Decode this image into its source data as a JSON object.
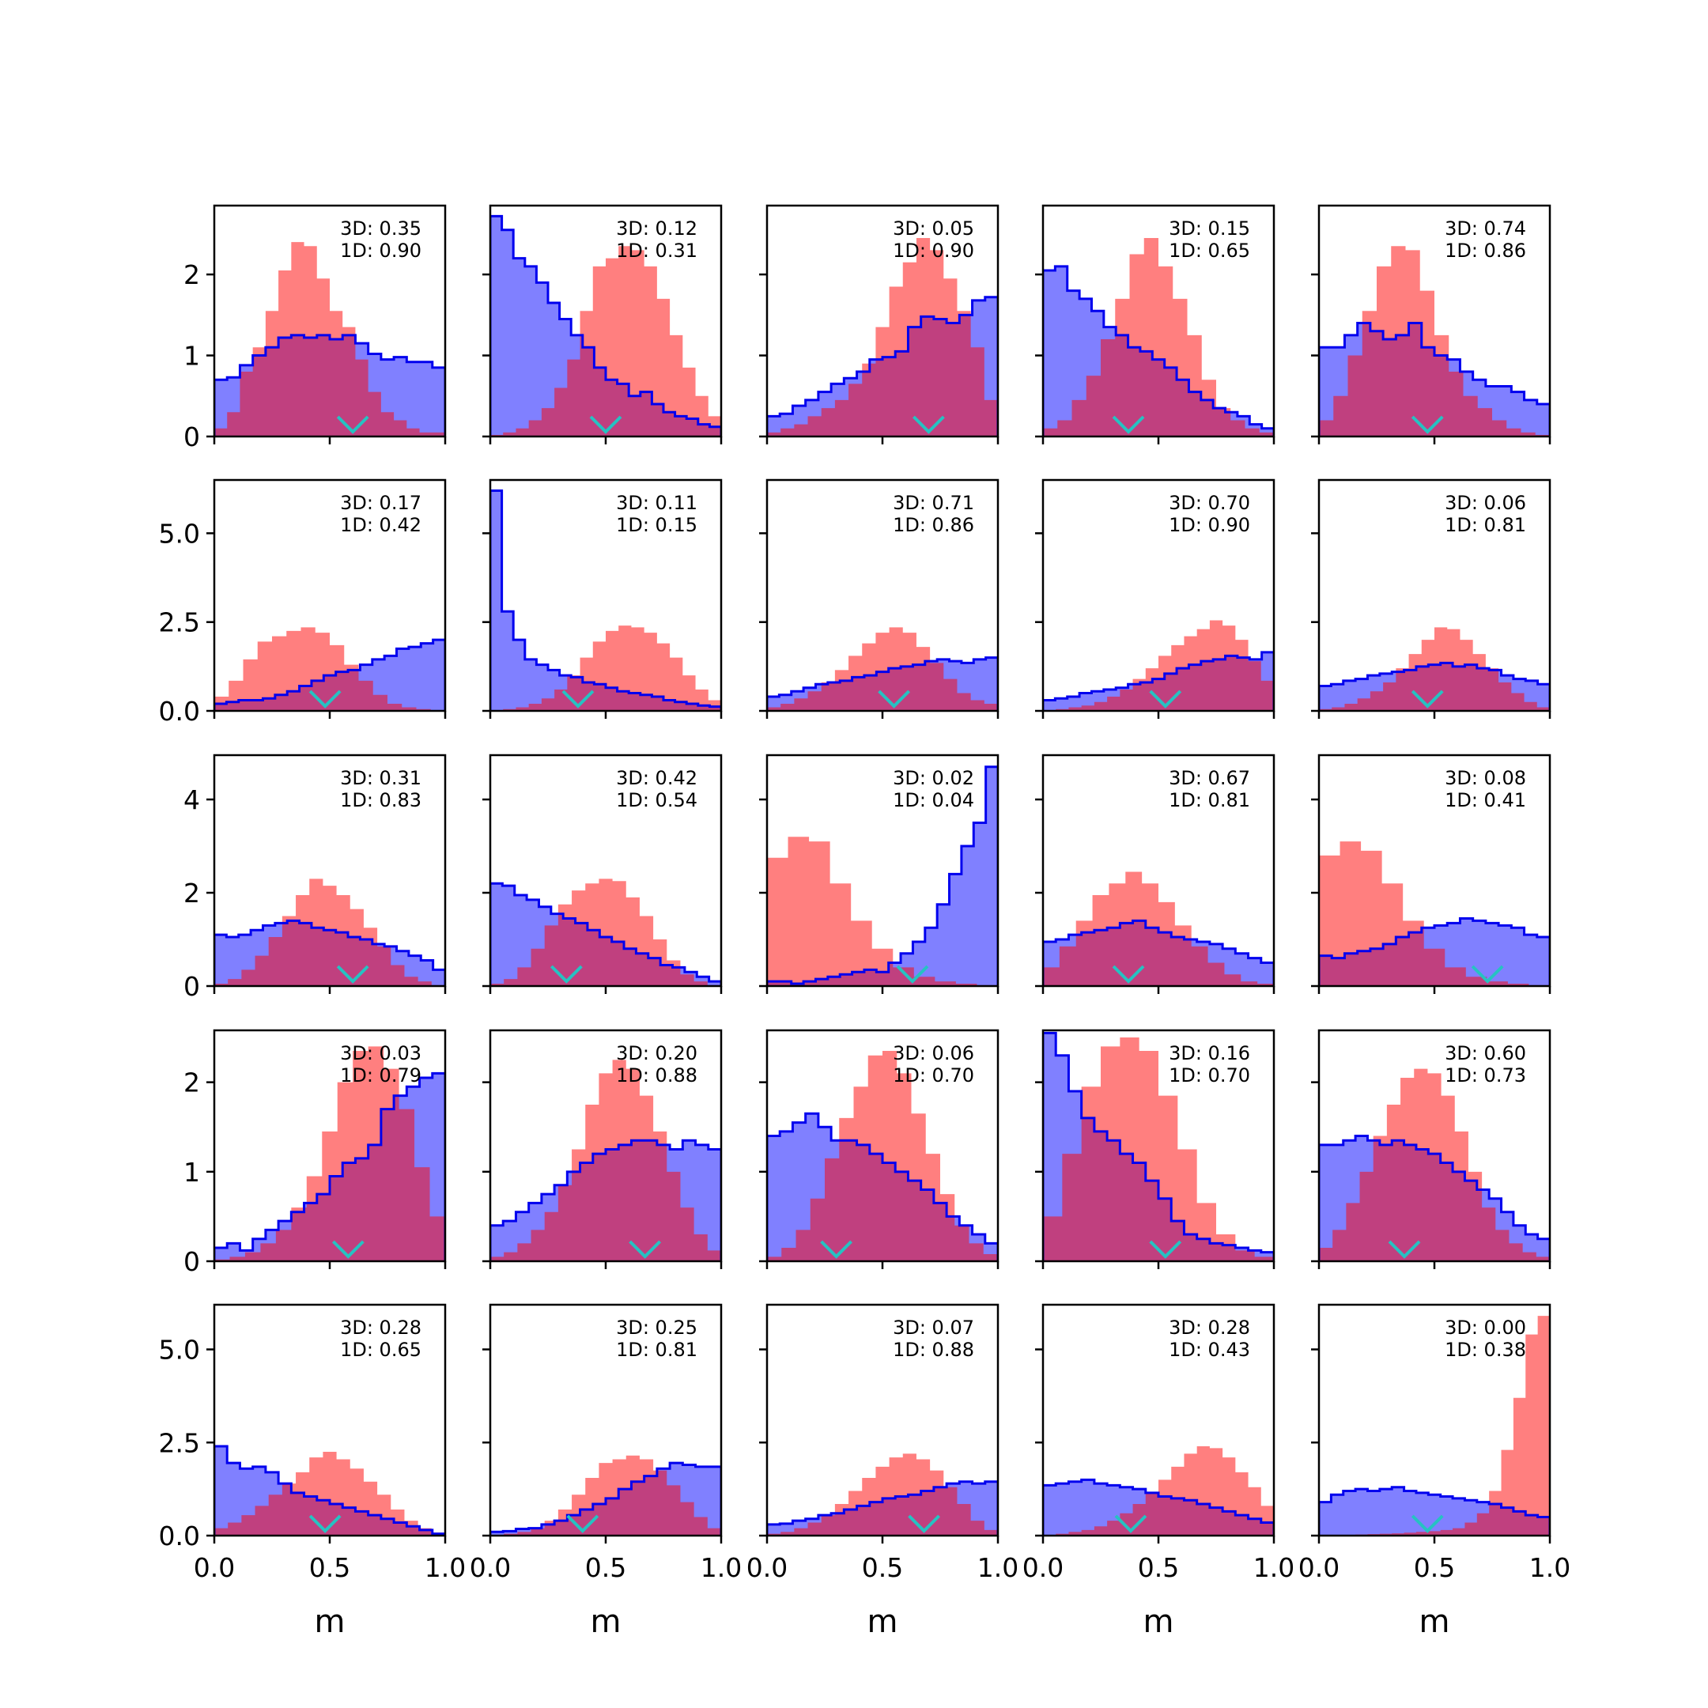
{
  "chart_data": {
    "type": "histogram-grid",
    "rows": 5,
    "cols": 5,
    "xlabel": "m",
    "xlim": [
      0,
      1
    ],
    "xticks": [
      "0.0",
      "0.5",
      "1.0"
    ],
    "colors": {
      "blue_fill": "#8080ff",
      "blue_edge": "#0000ee",
      "red_fill": "#ff7f7f",
      "overlap": "#c0407f",
      "marker": "#26c2c2"
    },
    "row_axes": [
      {
        "ylim": [
          0,
          2.85
        ],
        "yticks": [
          0,
          1,
          2
        ],
        "ytick_labels": [
          "0",
          "1",
          "2"
        ]
      },
      {
        "ylim": [
          0,
          6.5
        ],
        "yticks": [
          0,
          2.5,
          5.0
        ],
        "ytick_labels": [
          "0.0",
          "2.5",
          "5.0"
        ]
      },
      {
        "ylim": [
          0,
          4.95
        ],
        "yticks": [
          0,
          2,
          4
        ],
        "ytick_labels": [
          "0",
          "2",
          "4"
        ]
      },
      {
        "ylim": [
          0,
          2.58
        ],
        "yticks": [
          0,
          1,
          2
        ],
        "ytick_labels": [
          "0",
          "1",
          "2"
        ]
      },
      {
        "ylim": [
          0,
          6.2
        ],
        "yticks": [
          0,
          2.5,
          5.0
        ],
        "ytick_labels": [
          "0.0",
          "2.5",
          "5.0"
        ]
      }
    ],
    "panels": [
      {
        "label3d": "3D: 0.35",
        "label1d": "1D: 0.90",
        "marker": 0.6,
        "blue": [
          0.7,
          0.73,
          0.88,
          1.0,
          1.1,
          1.22,
          1.25,
          1.22,
          1.25,
          1.2,
          1.25,
          1.15,
          1.02,
          0.95,
          0.98,
          0.92,
          0.92,
          0.85
        ],
        "red": [
          0.1,
          0.3,
          0.8,
          1.1,
          1.55,
          2.05,
          2.4,
          2.35,
          1.95,
          1.55,
          1.35,
          0.95,
          0.55,
          0.3,
          0.2,
          0.1,
          0.05,
          0.05
        ]
      },
      {
        "label3d": "3D: 0.12",
        "label1d": "1D: 0.31",
        "marker": 0.5,
        "blue": [
          2.72,
          2.55,
          2.2,
          2.1,
          1.9,
          1.65,
          1.45,
          1.25,
          1.1,
          0.85,
          0.7,
          0.65,
          0.5,
          0.55,
          0.4,
          0.3,
          0.25,
          0.22,
          0.15,
          0.12
        ],
        "red": [
          0.02,
          0.05,
          0.1,
          0.2,
          0.35,
          0.6,
          0.95,
          1.55,
          2.1,
          2.2,
          2.35,
          2.3,
          2.1,
          1.7,
          1.25,
          0.85,
          0.5,
          0.25
        ]
      },
      {
        "label3d": "3D: 0.05",
        "label1d": "1D: 0.90",
        "marker": 0.7,
        "blue": [
          0.25,
          0.28,
          0.38,
          0.45,
          0.55,
          0.65,
          0.72,
          0.8,
          0.95,
          0.98,
          1.05,
          1.35,
          1.48,
          1.45,
          1.4,
          1.5,
          1.68,
          1.72
        ],
        "red": [
          0.05,
          0.1,
          0.15,
          0.25,
          0.35,
          0.45,
          0.65,
          0.9,
          1.35,
          1.85,
          2.15,
          2.45,
          2.3,
          1.95,
          1.55,
          1.1,
          0.45
        ]
      },
      {
        "label3d": "3D: 0.15",
        "label1d": "1D: 0.65",
        "marker": 0.37,
        "blue": [
          2.05,
          2.1,
          1.8,
          1.7,
          1.55,
          1.35,
          1.25,
          1.1,
          1.05,
          0.95,
          0.85,
          0.7,
          0.55,
          0.45,
          0.35,
          0.3,
          0.25,
          0.15,
          0.1
        ],
        "red": [
          0.1,
          0.2,
          0.45,
          0.75,
          1.2,
          1.7,
          2.25,
          2.45,
          2.1,
          1.7,
          1.25,
          0.7,
          0.35,
          0.2,
          0.1,
          0.05
        ]
      },
      {
        "label3d": "3D: 0.74",
        "label1d": "1D: 0.86",
        "marker": 0.47,
        "blue": [
          1.1,
          1.1,
          1.25,
          1.4,
          1.3,
          1.2,
          1.25,
          1.4,
          1.1,
          1.0,
          0.95,
          0.8,
          0.7,
          0.62,
          0.62,
          0.55,
          0.45,
          0.4
        ],
        "red": [
          0.2,
          0.5,
          1.0,
          1.55,
          2.1,
          2.35,
          2.3,
          1.8,
          1.25,
          0.8,
          0.5,
          0.35,
          0.2,
          0.1,
          0.05,
          0.02
        ]
      },
      {
        "label3d": "3D: 0.17",
        "label1d": "1D: 0.42",
        "marker": 0.48,
        "blue": [
          0.2,
          0.25,
          0.3,
          0.3,
          0.35,
          0.45,
          0.55,
          0.7,
          0.85,
          1.0,
          1.1,
          1.15,
          1.3,
          1.45,
          1.55,
          1.75,
          1.8,
          1.9,
          2.0
        ],
        "red": [
          0.4,
          0.85,
          1.45,
          1.95,
          2.1,
          2.25,
          2.35,
          2.2,
          1.85,
          1.3,
          0.85,
          0.45,
          0.2,
          0.1,
          0.05,
          0.02
        ]
      },
      {
        "label3d": "3D: 0.11",
        "label1d": "1D: 0.15",
        "marker": 0.38,
        "blue": [
          6.2,
          2.8,
          2.0,
          1.45,
          1.3,
          1.15,
          1.0,
          0.95,
          0.8,
          0.75,
          0.65,
          0.55,
          0.5,
          0.45,
          0.4,
          0.3,
          0.25,
          0.2,
          0.15,
          0.12
        ],
        "red": [
          0.02,
          0.05,
          0.1,
          0.2,
          0.35,
          0.6,
          1.0,
          1.5,
          1.95,
          2.25,
          2.4,
          2.35,
          2.2,
          1.9,
          1.5,
          1.0,
          0.6,
          0.3
        ]
      },
      {
        "label3d": "3D: 0.71",
        "label1d": "1D: 0.86",
        "marker": 0.55,
        "blue": [
          0.4,
          0.45,
          0.55,
          0.65,
          0.75,
          0.8,
          0.85,
          0.95,
          1.0,
          1.1,
          1.2,
          1.25,
          1.3,
          1.4,
          1.45,
          1.4,
          1.35,
          1.45,
          1.5
        ],
        "red": [
          0.1,
          0.2,
          0.35,
          0.55,
          0.8,
          1.15,
          1.55,
          1.9,
          2.2,
          2.35,
          2.2,
          1.8,
          1.35,
          0.9,
          0.5,
          0.3,
          0.2
        ]
      },
      {
        "label3d": "3D: 0.70",
        "label1d": "1D: 0.90",
        "marker": 0.53,
        "blue": [
          0.3,
          0.35,
          0.4,
          0.5,
          0.55,
          0.6,
          0.65,
          0.75,
          0.8,
          0.9,
          1.05,
          1.2,
          1.3,
          1.4,
          1.45,
          1.55,
          1.5,
          1.45,
          1.65
        ],
        "red": [
          0.02,
          0.05,
          0.1,
          0.15,
          0.25,
          0.4,
          0.6,
          0.9,
          1.2,
          1.55,
          1.85,
          2.1,
          2.3,
          2.55,
          2.4,
          2.0,
          1.4,
          0.85
        ]
      },
      {
        "label3d": "3D: 0.06",
        "label1d": "1D: 0.81",
        "marker": 0.47,
        "blue": [
          0.7,
          0.75,
          0.85,
          0.9,
          1.0,
          1.05,
          1.1,
          1.15,
          1.25,
          1.3,
          1.35,
          1.25,
          1.3,
          1.2,
          1.15,
          1.0,
          0.9,
          0.85,
          0.75
        ],
        "red": [
          0.05,
          0.1,
          0.2,
          0.35,
          0.55,
          0.8,
          1.2,
          1.6,
          2.0,
          2.35,
          2.3,
          2.0,
          1.6,
          1.2,
          0.8,
          0.5,
          0.25,
          0.1
        ]
      },
      {
        "label3d": "3D: 0.31",
        "label1d": "1D: 0.83",
        "marker": 0.6,
        "blue": [
          1.1,
          1.05,
          1.1,
          1.2,
          1.3,
          1.35,
          1.4,
          1.35,
          1.25,
          1.2,
          1.15,
          1.05,
          1.0,
          0.9,
          0.85,
          0.75,
          0.65,
          0.55,
          0.35
        ],
        "red": [
          0.05,
          0.15,
          0.35,
          0.65,
          1.05,
          1.5,
          1.95,
          2.3,
          2.15,
          1.95,
          1.65,
          1.25,
          0.85,
          0.45,
          0.2,
          0.1,
          0.02
        ]
      },
      {
        "label3d": "3D: 0.42",
        "label1d": "1D: 0.54",
        "marker": 0.33,
        "blue": [
          2.2,
          2.15,
          1.95,
          1.85,
          1.7,
          1.55,
          1.45,
          1.35,
          1.2,
          1.05,
          0.95,
          0.8,
          0.7,
          0.6,
          0.45,
          0.4,
          0.3,
          0.2,
          0.1
        ],
        "red": [
          0.05,
          0.15,
          0.4,
          0.8,
          1.3,
          1.75,
          2.05,
          2.2,
          2.3,
          2.25,
          1.9,
          1.5,
          1.0,
          0.55,
          0.25,
          0.1,
          0.02
        ]
      },
      {
        "label3d": "3D: 0.02",
        "label1d": "1D: 0.04",
        "marker": 0.63,
        "blue": [
          0.1,
          0.1,
          0.05,
          0.1,
          0.15,
          0.2,
          0.25,
          0.3,
          0.35,
          0.3,
          0.5,
          0.7,
          0.95,
          1.25,
          1.75,
          2.4,
          3.0,
          3.5,
          4.7
        ],
        "red": [
          2.75,
          3.2,
          3.1,
          2.2,
          1.4,
          0.8,
          0.4,
          0.2,
          0.1,
          0.05,
          0.02
        ]
      },
      {
        "label3d": "3D: 0.67",
        "label1d": "1D: 0.81",
        "marker": 0.37,
        "blue": [
          0.95,
          1.0,
          1.1,
          1.15,
          1.2,
          1.25,
          1.35,
          1.4,
          1.25,
          1.15,
          1.05,
          1.0,
          0.95,
          0.9,
          0.8,
          0.7,
          0.6,
          0.5
        ],
        "red": [
          0.4,
          0.85,
          1.4,
          1.95,
          2.2,
          2.45,
          2.2,
          1.8,
          1.3,
          0.85,
          0.5,
          0.25,
          0.1,
          0.05
        ]
      },
      {
        "label3d": "3D: 0.08",
        "label1d": "1D: 0.41",
        "marker": 0.73,
        "blue": [
          0.65,
          0.6,
          0.7,
          0.75,
          0.8,
          0.9,
          1.05,
          1.15,
          1.25,
          1.3,
          1.35,
          1.45,
          1.4,
          1.35,
          1.3,
          1.25,
          1.1,
          1.05
        ],
        "red": [
          2.8,
          3.1,
          2.9,
          2.2,
          1.4,
          0.8,
          0.4,
          0.2,
          0.1,
          0.05,
          0.02
        ]
      },
      {
        "label3d": "3D: 0.03",
        "label1d": "1D: 0.79",
        "marker": 0.58,
        "blue": [
          0.15,
          0.2,
          0.12,
          0.25,
          0.35,
          0.45,
          0.55,
          0.65,
          0.75,
          0.95,
          1.1,
          1.15,
          1.3,
          1.7,
          1.85,
          1.95,
          2.05,
          2.1
        ],
        "red": [
          0.02,
          0.05,
          0.1,
          0.2,
          0.35,
          0.6,
          0.95,
          1.45,
          2.0,
          2.35,
          2.4,
          2.15,
          1.7,
          1.05,
          0.5
        ]
      },
      {
        "label3d": "3D: 0.20",
        "label1d": "1D: 0.88",
        "marker": 0.67,
        "blue": [
          0.4,
          0.45,
          0.55,
          0.65,
          0.75,
          0.85,
          1.0,
          1.1,
          1.2,
          1.25,
          1.3,
          1.35,
          1.35,
          1.3,
          1.25,
          1.35,
          1.3,
          1.25
        ],
        "red": [
          0.05,
          0.1,
          0.2,
          0.35,
          0.55,
          0.85,
          1.25,
          1.75,
          2.1,
          2.25,
          2.15,
          1.85,
          1.45,
          1.0,
          0.6,
          0.3,
          0.12
        ]
      },
      {
        "label3d": "3D: 0.06",
        "label1d": "1D: 0.70",
        "marker": 0.3,
        "blue": [
          1.4,
          1.45,
          1.55,
          1.65,
          1.5,
          1.35,
          1.35,
          1.3,
          1.2,
          1.1,
          1.0,
          0.9,
          0.8,
          0.65,
          0.5,
          0.4,
          0.3,
          0.2
        ],
        "red": [
          0.05,
          0.15,
          0.35,
          0.7,
          1.15,
          1.6,
          1.95,
          2.3,
          2.35,
          2.1,
          1.65,
          1.2,
          0.75,
          0.4,
          0.2,
          0.08
        ]
      },
      {
        "label3d": "3D: 0.16",
        "label1d": "1D: 0.70",
        "marker": 0.53,
        "blue": [
          2.55,
          2.3,
          1.9,
          1.6,
          1.45,
          1.35,
          1.2,
          1.1,
          0.9,
          0.7,
          0.45,
          0.3,
          0.25,
          0.2,
          0.18,
          0.15,
          0.12,
          0.1
        ],
        "red": [
          0.5,
          1.2,
          1.95,
          2.4,
          2.5,
          2.35,
          1.85,
          1.25,
          0.65,
          0.3,
          0.12,
          0.05
        ]
      },
      {
        "label3d": "3D: 0.60",
        "label1d": "1D: 0.73",
        "marker": 0.37,
        "blue": [
          1.3,
          1.3,
          1.35,
          1.4,
          1.35,
          1.3,
          1.35,
          1.3,
          1.25,
          1.2,
          1.1,
          1.0,
          0.9,
          0.8,
          0.7,
          0.55,
          0.4,
          0.3,
          0.25
        ],
        "red": [
          0.15,
          0.35,
          0.65,
          1.0,
          1.4,
          1.75,
          2.05,
          2.15,
          2.1,
          1.85,
          1.45,
          1.0,
          0.6,
          0.35,
          0.2,
          0.1,
          0.05
        ]
      },
      {
        "label3d": "3D: 0.28",
        "label1d": "1D: 0.65",
        "marker": 0.48,
        "blue": [
          2.4,
          1.95,
          1.8,
          1.85,
          1.7,
          1.4,
          1.15,
          1.05,
          0.95,
          0.85,
          0.75,
          0.65,
          0.55,
          0.45,
          0.35,
          0.25,
          0.15,
          0.05
        ],
        "red": [
          0.2,
          0.35,
          0.55,
          0.8,
          1.1,
          1.4,
          1.7,
          2.1,
          2.25,
          2.05,
          1.8,
          1.45,
          1.1,
          0.7,
          0.4,
          0.2,
          0.08
        ]
      },
      {
        "label3d": "3D: 0.25",
        "label1d": "1D: 0.81",
        "marker": 0.4,
        "blue": [
          0.1,
          0.12,
          0.18,
          0.2,
          0.3,
          0.4,
          0.55,
          0.7,
          0.85,
          1.0,
          1.25,
          1.45,
          1.6,
          1.8,
          1.95,
          1.9,
          1.85,
          1.85
        ],
        "red": [
          0.02,
          0.05,
          0.1,
          0.2,
          0.4,
          0.7,
          1.1,
          1.55,
          1.95,
          2.05,
          2.15,
          2.05,
          1.75,
          1.35,
          0.9,
          0.5,
          0.2
        ]
      },
      {
        "label3d": "3D: 0.07",
        "label1d": "1D: 0.88",
        "marker": 0.68,
        "blue": [
          0.3,
          0.32,
          0.4,
          0.45,
          0.55,
          0.6,
          0.7,
          0.8,
          0.9,
          1.0,
          1.05,
          1.1,
          1.2,
          1.3,
          1.4,
          1.45,
          1.4,
          1.45
        ],
        "red": [
          0.05,
          0.1,
          0.2,
          0.35,
          0.55,
          0.85,
          1.2,
          1.55,
          1.85,
          2.1,
          2.2,
          2.05,
          1.75,
          1.3,
          0.85,
          0.4,
          0.15
        ]
      },
      {
        "label3d": "3D: 0.28",
        "label1d": "1D: 0.43",
        "marker": 0.38,
        "blue": [
          1.35,
          1.4,
          1.45,
          1.5,
          1.4,
          1.35,
          1.3,
          1.25,
          1.15,
          1.05,
          1.0,
          0.95,
          0.85,
          0.75,
          0.65,
          0.55,
          0.45,
          0.35
        ],
        "red": [
          0.02,
          0.05,
          0.1,
          0.15,
          0.25,
          0.4,
          0.6,
          0.85,
          1.15,
          1.5,
          1.85,
          2.2,
          2.4,
          2.35,
          2.1,
          1.7,
          1.3,
          0.8
        ]
      },
      {
        "label3d": "3D: 0.00",
        "label1d": "1D: 0.38",
        "marker": 0.47,
        "blue": [
          0.9,
          1.1,
          1.2,
          1.25,
          1.2,
          1.25,
          1.3,
          1.2,
          1.15,
          1.1,
          1.05,
          1.0,
          0.95,
          0.9,
          0.85,
          0.75,
          0.65,
          0.55,
          0.5
        ],
        "red": [
          0.02,
          0.02,
          0.02,
          0.03,
          0.04,
          0.05,
          0.06,
          0.08,
          0.1,
          0.12,
          0.15,
          0.2,
          0.35,
          0.6,
          1.2,
          2.3,
          3.7,
          5.4,
          5.9
        ]
      }
    ]
  }
}
